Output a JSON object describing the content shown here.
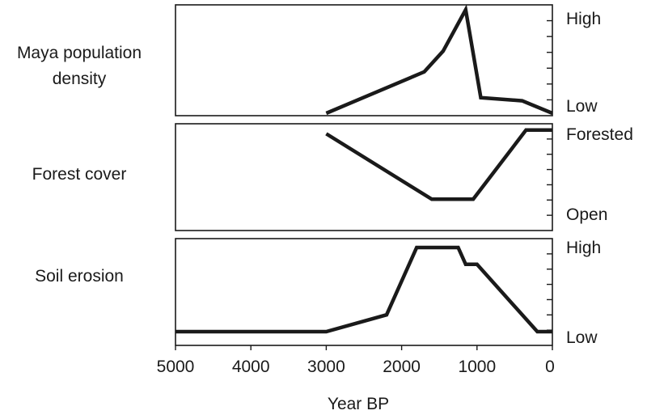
{
  "chart_data": [
    {
      "type": "line",
      "label_lines": [
        "Maya population",
        "density"
      ],
      "y_high_label": "High",
      "y_low_label": "Low",
      "x": [
        3000,
        1700,
        1450,
        1150,
        950,
        400,
        0
      ],
      "y": [
        0.0,
        0.4,
        0.6,
        1.0,
        0.15,
        0.12,
        0.0
      ],
      "ylim": [
        0,
        1
      ]
    },
    {
      "type": "line",
      "label_lines": [
        "Forest cover"
      ],
      "y_high_label": "Forested",
      "y_low_label": "Open",
      "x": [
        3000,
        1600,
        1050,
        350,
        0
      ],
      "y": [
        0.92,
        0.04,
        0.04,
        0.97,
        0.97
      ],
      "ylim": [
        0,
        1
      ]
    },
    {
      "type": "line",
      "label_lines": [
        "Soil erosion"
      ],
      "y_high_label": "High",
      "y_low_label": "Low",
      "x": [
        5000,
        3000,
        2200,
        1800,
        1250,
        1150,
        1000,
        200,
        0
      ],
      "y": [
        0.0,
        0.0,
        0.2,
        1.0,
        1.0,
        0.8,
        0.8,
        0.0,
        0.0
      ],
      "ylim": [
        0,
        1
      ]
    }
  ],
  "x_axis": {
    "title": "Year BP",
    "ticks": [
      "5000",
      "4000",
      "3000",
      "2000",
      "1000",
      "0"
    ],
    "tick_values": [
      5000,
      4000,
      3000,
      2000,
      1000,
      0
    ],
    "xlim": [
      5000,
      0
    ]
  },
  "colors": {
    "line": "#1a1a1a",
    "frame": "#1a1a1a",
    "background": "#ffffff"
  }
}
